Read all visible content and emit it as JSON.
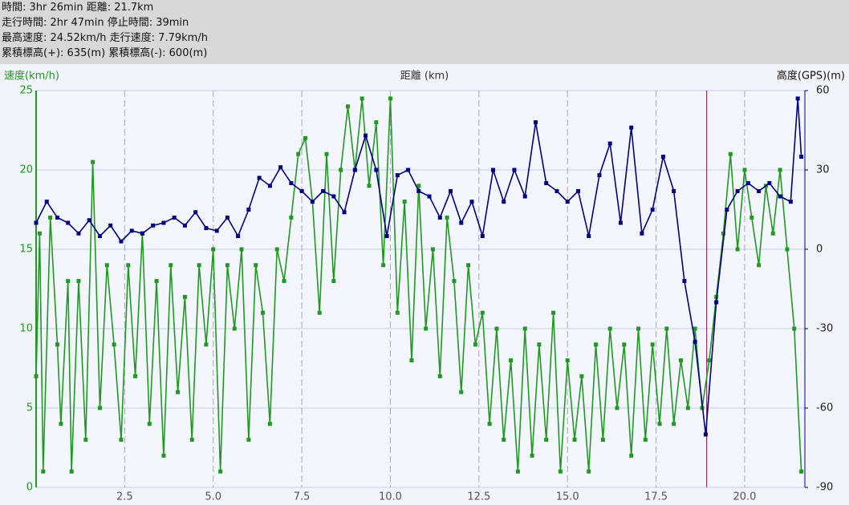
{
  "header": {
    "lines": [
      "時間: 3hr 26min 距離: 21.7km",
      "走行時間: 2hr 47min 停止時間: 39min",
      "最高速度: 24.52km/h 走行速度: 7.79km/h",
      "累積標高(+): 635(m) 累積標高(-): 600(m)"
    ]
  },
  "chart_data": {
    "type": "line",
    "xlabel": "距離 (km)",
    "ylabel": "速度(km/h)",
    "y2label": "高度(GPS)(m)",
    "xlim": [
      0,
      21.7
    ],
    "xticks": [
      2.5,
      {
        "value": 5,
        "label": "5.0"
      },
      7.5,
      {
        "value": 10,
        "label": "10.0"
      },
      12.5,
      {
        "value": 15,
        "label": "15.0"
      },
      17.5,
      {
        "value": 20,
        "label": "20.0"
      }
    ],
    "ylim": [
      0,
      25
    ],
    "yticks": [
      0,
      5,
      10,
      15,
      20,
      25
    ],
    "y2lim": [
      -90,
      60
    ],
    "y2ticks": [
      -90,
      -60,
      -30,
      0,
      30,
      60
    ],
    "grid": true,
    "cursor_x": 18.93,
    "cursor_color": "#800040",
    "series": [
      {
        "name": "速度",
        "color": "#1f9a1f",
        "axis": "y",
        "x": [
          0.0,
          0.1,
          0.2,
          0.4,
          0.6,
          0.7,
          0.9,
          1.0,
          1.2,
          1.4,
          1.6,
          1.8,
          2.0,
          2.2,
          2.4,
          2.6,
          2.8,
          3.0,
          3.2,
          3.4,
          3.6,
          3.8,
          4.0,
          4.2,
          4.4,
          4.6,
          4.8,
          5.0,
          5.2,
          5.4,
          5.6,
          5.8,
          6.0,
          6.2,
          6.4,
          6.6,
          6.8,
          7.0,
          7.2,
          7.4,
          7.6,
          7.8,
          8.0,
          8.2,
          8.4,
          8.6,
          8.8,
          9.0,
          9.2,
          9.4,
          9.6,
          9.8,
          10.0,
          10.2,
          10.4,
          10.6,
          10.8,
          11.0,
          11.2,
          11.4,
          11.6,
          11.8,
          12.0,
          12.2,
          12.4,
          12.6,
          12.8,
          13.0,
          13.2,
          13.4,
          13.6,
          13.8,
          14.0,
          14.2,
          14.4,
          14.6,
          14.8,
          15.0,
          15.2,
          15.4,
          15.6,
          15.8,
          16.0,
          16.2,
          16.4,
          16.6,
          16.8,
          17.0,
          17.2,
          17.4,
          17.6,
          17.8,
          18.0,
          18.2,
          18.4,
          18.6,
          18.8,
          19.0,
          19.2,
          19.4,
          19.6,
          19.8,
          20.0,
          20.2,
          20.4,
          20.6,
          20.8,
          21.0,
          21.2,
          21.4,
          21.6
        ],
        "values": [
          7,
          16,
          1,
          17,
          9,
          4,
          13,
          1,
          13,
          3,
          20.5,
          5,
          14,
          9,
          3,
          14,
          7,
          16,
          4,
          13,
          2,
          14,
          6,
          12,
          3,
          14,
          9,
          15,
          1,
          14,
          10,
          15,
          3,
          14,
          11,
          4,
          15,
          13,
          17,
          21,
          22,
          18,
          11,
          21,
          13,
          20,
          24,
          20,
          24.5,
          19,
          23,
          14,
          24.5,
          11,
          18,
          8,
          19,
          10,
          15,
          7,
          17,
          13,
          6,
          14,
          9,
          11,
          4,
          10,
          3,
          8,
          1,
          10,
          2,
          9,
          3,
          11,
          1,
          8,
          3,
          7,
          1,
          9,
          3,
          10,
          5,
          9,
          2,
          10,
          3,
          9,
          4,
          10,
          4,
          8,
          5,
          10,
          5,
          8,
          12,
          16,
          21,
          15,
          20,
          17,
          14,
          19,
          16,
          20,
          15,
          10,
          1
        ]
      },
      {
        "name": "高度",
        "color": "#000080",
        "axis": "y2",
        "x": [
          0.0,
          0.3,
          0.6,
          0.9,
          1.2,
          1.5,
          1.8,
          2.1,
          2.4,
          2.7,
          3.0,
          3.3,
          3.6,
          3.9,
          4.2,
          4.5,
          4.8,
          5.1,
          5.4,
          5.7,
          6.0,
          6.3,
          6.6,
          6.9,
          7.2,
          7.5,
          7.8,
          8.1,
          8.4,
          8.7,
          9.0,
          9.3,
          9.6,
          9.9,
          10.2,
          10.5,
          10.8,
          11.1,
          11.4,
          11.7,
          12.0,
          12.3,
          12.6,
          12.9,
          13.2,
          13.5,
          13.8,
          14.1,
          14.4,
          14.7,
          15.0,
          15.3,
          15.6,
          15.9,
          16.2,
          16.5,
          16.8,
          17.1,
          17.4,
          17.7,
          18.0,
          18.3,
          18.6,
          18.9,
          19.2,
          19.5,
          19.8,
          20.1,
          20.4,
          20.7,
          21.0,
          21.3,
          21.5,
          21.6
        ],
        "values": [
          10,
          18,
          12,
          10,
          6,
          11,
          5,
          9,
          3,
          7,
          6,
          9,
          10,
          12,
          9,
          14,
          8,
          7,
          12,
          5,
          15,
          27,
          24,
          31,
          25,
          22,
          18,
          22,
          20,
          14,
          30,
          43,
          30,
          5,
          28,
          30,
          22,
          20,
          12,
          22,
          10,
          18,
          5,
          30,
          18,
          30,
          20,
          48,
          25,
          22,
          18,
          22,
          5,
          28,
          40,
          10,
          46,
          6,
          15,
          35,
          22,
          -12,
          -35,
          -70,
          -20,
          15,
          22,
          25,
          22,
          25,
          20,
          18,
          57,
          35
        ]
      }
    ]
  }
}
